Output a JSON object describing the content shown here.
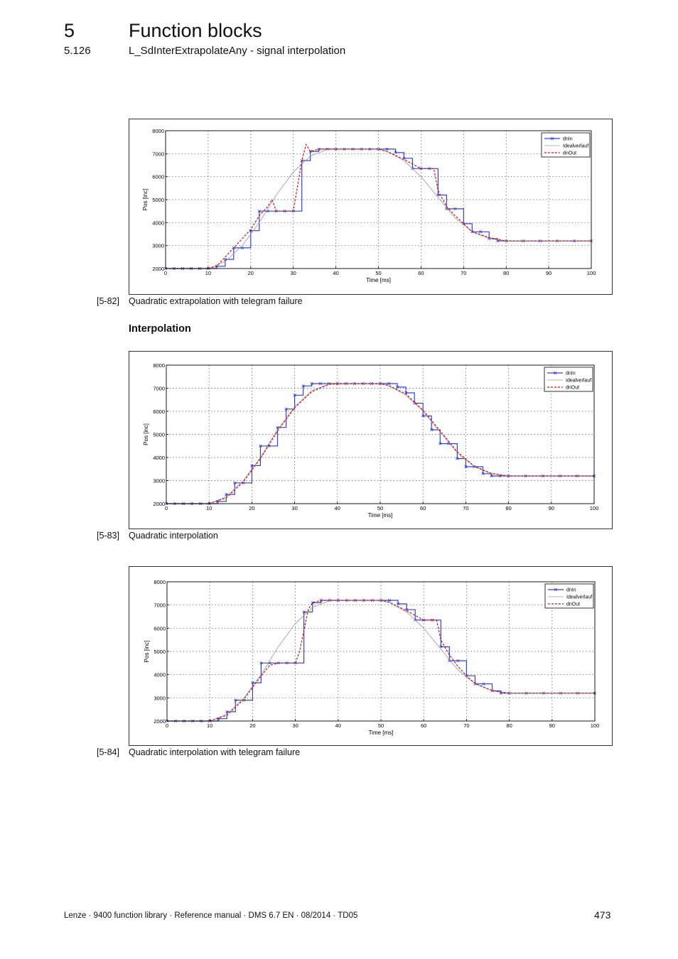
{
  "header": {
    "chapter_number": "5",
    "chapter_title": "Function blocks",
    "section_number": "5.126",
    "section_title": "L_SdInterExtrapolateAny - signal interpolation",
    "separator": "________________________________________________________________"
  },
  "subheading": "Interpolation",
  "figures": [
    {
      "caption_number": "[5-82]",
      "caption_text": "Quadratic extrapolation with telegram failure",
      "chart_data": {
        "type": "line",
        "title": "",
        "xlabel": "Time [ms]",
        "ylabel": "Pos [inc]",
        "xlim": [
          0,
          100
        ],
        "ylim": [
          2000,
          8000
        ],
        "xticks": [
          0,
          10,
          20,
          30,
          40,
          50,
          60,
          70,
          80,
          90,
          100
        ],
        "yticks": [
          2000,
          3000,
          4000,
          5000,
          6000,
          7000,
          8000
        ],
        "xtick_labels": [
          "0",
          "10",
          "20",
          "30",
          "40",
          "50",
          "60",
          "70",
          "80",
          "90",
          "100"
        ],
        "ytick_labels": [
          "2000",
          "3000",
          "4000",
          "5000",
          "6000",
          "7000",
          "8000"
        ],
        "grid": true,
        "legend_position": "top-right",
        "series": [
          {
            "name": "dnIn",
            "style": "step-markers",
            "color": "#3344cc",
            "x": [
              0,
              2,
              4,
              6,
              8,
              10,
              12,
              14,
              16,
              18,
              20,
              22,
              24,
              26,
              28,
              30,
              32,
              34,
              36,
              38,
              40,
              42,
              44,
              46,
              48,
              50,
              52,
              54,
              56,
              58,
              60,
              62,
              64,
              66,
              68,
              70,
              72,
              74,
              76,
              78,
              80,
              84,
              88,
              92,
              96,
              100
            ],
            "y": [
              2000,
              2000,
              2000,
              2000,
              2000,
              2000,
              2100,
              2400,
              2900,
              2900,
              3650,
              4500,
              4500,
              4500,
              4500,
              4500,
              6700,
              7100,
              7200,
              7200,
              7200,
              7200,
              7200,
              7200,
              7200,
              7200,
              7200,
              7050,
              6800,
              6350,
              6350,
              6350,
              5200,
              4600,
              4600,
              3950,
              3600,
              3600,
              3300,
              3200,
              3200,
              3200,
              3200,
              3200,
              3200,
              3200
            ]
          },
          {
            "name": "Idealverlauf",
            "style": "solid",
            "color": "#999999",
            "x": [
              0,
              10,
              14,
              18,
              22,
              26,
              30,
              34,
              38,
              42,
              46,
              50,
              52,
              56,
              60,
              64,
              68,
              72,
              76,
              80,
              100
            ],
            "y": [
              2000,
              2000,
              2300,
              3000,
              4000,
              5200,
              6200,
              6900,
              7180,
              7200,
              7200,
              7200,
              7100,
              6700,
              6000,
              5100,
              4200,
              3600,
              3300,
              3200,
              3200
            ]
          },
          {
            "name": "dnOut",
            "style": "dashed",
            "color": "#dd1111",
            "x": [
              0,
              10,
              12,
              14,
              16,
              18,
              20,
              22,
              24,
              25,
              26,
              28,
              30,
              32,
              33,
              34,
              36,
              38,
              42,
              46,
              50,
              52,
              56,
              60,
              63,
              64,
              66,
              68,
              70,
              72,
              76,
              80,
              100
            ],
            "y": [
              2000,
              2000,
              2100,
              2500,
              2900,
              3300,
              3700,
              4300,
              4700,
              5000,
              4500,
              4500,
              4500,
              6700,
              7400,
              7100,
              7200,
              7200,
              7200,
              7200,
              7200,
              7100,
              6750,
              6350,
              6350,
              5400,
              4700,
              4300,
              3950,
              3600,
              3350,
              3200,
              3200
            ]
          }
        ]
      }
    },
    {
      "caption_number": "[5-83]",
      "caption_text": "Quadratic interpolation",
      "chart_data": {
        "type": "line",
        "title": "",
        "xlabel": "Time [ms]",
        "ylabel": "Pos [inc]",
        "xlim": [
          0,
          100
        ],
        "ylim": [
          2000,
          8000
        ],
        "xticks": [
          0,
          10,
          20,
          30,
          40,
          50,
          60,
          70,
          80,
          90,
          100
        ],
        "yticks": [
          2000,
          3000,
          4000,
          5000,
          6000,
          7000,
          8000
        ],
        "xtick_labels": [
          "0",
          "10",
          "20",
          "30",
          "40",
          "50",
          "60",
          "70",
          "80",
          "90",
          "100"
        ],
        "ytick_labels": [
          "2000",
          "3000",
          "4000",
          "5000",
          "6000",
          "7000",
          "8000"
        ],
        "grid": true,
        "legend_position": "top-right",
        "series": [
          {
            "name": "dnIn",
            "style": "step-markers",
            "color": "#3344cc",
            "x": [
              0,
              2,
              4,
              6,
              8,
              10,
              12,
              14,
              16,
              18,
              20,
              22,
              24,
              26,
              28,
              30,
              32,
              34,
              36,
              38,
              40,
              42,
              44,
              46,
              48,
              50,
              52,
              54,
              56,
              58,
              60,
              62,
              64,
              66,
              68,
              70,
              72,
              74,
              76,
              78,
              80,
              84,
              88,
              92,
              96,
              100
            ],
            "y": [
              2000,
              2000,
              2000,
              2000,
              2000,
              2000,
              2100,
              2400,
              2900,
              2900,
              3650,
              4500,
              4500,
              5300,
              6100,
              6700,
              7100,
              7200,
              7200,
              7200,
              7200,
              7200,
              7200,
              7200,
              7200,
              7200,
              7200,
              7050,
              6800,
              6350,
              5800,
              5200,
              4600,
              4600,
              3950,
              3600,
              3600,
              3300,
              3200,
              3200,
              3200,
              3200,
              3200,
              3200,
              3200,
              3200
            ]
          },
          {
            "name": "Idealverlauf",
            "style": "solid",
            "color": "#999999",
            "x": [
              0,
              10,
              14,
              18,
              22,
              26,
              30,
              34,
              38,
              42,
              46,
              50,
              52,
              56,
              60,
              64,
              68,
              72,
              76,
              80,
              100
            ],
            "y": [
              2000,
              2000,
              2300,
              3000,
              4000,
              5200,
              6200,
              6900,
              7180,
              7200,
              7200,
              7200,
              7100,
              6700,
              6000,
              5100,
              4200,
              3600,
              3300,
              3200,
              3200
            ]
          },
          {
            "name": "dnOut",
            "style": "dashed",
            "color": "#dd1111",
            "x": [
              0,
              10,
              14,
              18,
              22,
              26,
              30,
              34,
              38,
              42,
              46,
              50,
              52,
              56,
              60,
              64,
              68,
              72,
              76,
              80,
              100
            ],
            "y": [
              2000,
              2000,
              2250,
              2950,
              3950,
              5150,
              6150,
              6850,
              7170,
              7200,
              7200,
              7200,
              7120,
              6750,
              6050,
              5150,
              4250,
              3620,
              3310,
              3200,
              3200
            ]
          }
        ]
      }
    },
    {
      "caption_number": "[5-84]",
      "caption_text": "Quadratic interpolation with telegram failure",
      "chart_data": {
        "type": "line",
        "title": "",
        "xlabel": "Time [ms]",
        "ylabel": "Pos [inc]",
        "xlim": [
          0,
          100
        ],
        "ylim": [
          2000,
          8000
        ],
        "xticks": [
          0,
          10,
          20,
          30,
          40,
          50,
          60,
          70,
          80,
          90,
          100
        ],
        "yticks": [
          2000,
          3000,
          4000,
          5000,
          6000,
          7000,
          8000
        ],
        "xtick_labels": [
          "0",
          "10",
          "20",
          "30",
          "40",
          "50",
          "60",
          "70",
          "80",
          "90",
          "100"
        ],
        "ytick_labels": [
          "2000",
          "3000",
          "4000",
          "5000",
          "6000",
          "7000",
          "8000"
        ],
        "grid": true,
        "legend_position": "top-right",
        "series": [
          {
            "name": "dnIn",
            "style": "step-markers",
            "color": "#3344cc",
            "x": [
              0,
              2,
              4,
              6,
              8,
              10,
              12,
              14,
              16,
              18,
              20,
              22,
              24,
              26,
              28,
              30,
              32,
              34,
              36,
              38,
              40,
              42,
              44,
              46,
              48,
              50,
              52,
              54,
              56,
              58,
              60,
              62,
              64,
              66,
              68,
              70,
              72,
              74,
              76,
              78,
              80,
              84,
              88,
              92,
              96,
              100
            ],
            "y": [
              2000,
              2000,
              2000,
              2000,
              2000,
              2000,
              2100,
              2400,
              2900,
              2900,
              3650,
              4500,
              4500,
              4500,
              4500,
              4500,
              6700,
              7100,
              7200,
              7200,
              7200,
              7200,
              7200,
              7200,
              7200,
              7200,
              7200,
              7050,
              6800,
              6350,
              6350,
              6350,
              5200,
              4600,
              4600,
              3950,
              3600,
              3600,
              3300,
              3200,
              3200,
              3200,
              3200,
              3200,
              3200,
              3200
            ]
          },
          {
            "name": "Idealverlauf",
            "style": "solid",
            "color": "#999999",
            "x": [
              0,
              10,
              14,
              18,
              22,
              26,
              30,
              34,
              38,
              42,
              46,
              50,
              52,
              56,
              60,
              64,
              68,
              72,
              76,
              80,
              100
            ],
            "y": [
              2000,
              2000,
              2300,
              3000,
              4000,
              5200,
              6200,
              6900,
              7180,
              7200,
              7200,
              7200,
              7100,
              6700,
              6000,
              5100,
              4200,
              3600,
              3300,
              3200,
              3200
            ]
          },
          {
            "name": "dnOut",
            "style": "dashed",
            "color": "#dd1111",
            "x": [
              0,
              10,
              14,
              18,
              22,
              24,
              26,
              28,
              30,
              31,
              32,
              33,
              34,
              36,
              38,
              42,
              46,
              50,
              52,
              56,
              60,
              63,
              64,
              66,
              68,
              70,
              72,
              76,
              80,
              100
            ],
            "y": [
              2000,
              2000,
              2250,
              2950,
              3950,
              4400,
              4500,
              4500,
              4500,
              5000,
              5900,
              6800,
              7100,
              7200,
              7200,
              7200,
              7200,
              7200,
              7120,
              6750,
              6350,
              6350,
              5500,
              4850,
              4350,
              3950,
              3620,
              3310,
              3200,
              3200
            ]
          }
        ]
      }
    }
  ],
  "footer": {
    "left": "Lenze · 9400 function library · Reference manual · DMS 6.7 EN · 08/2014 · TD05",
    "page": "473"
  }
}
